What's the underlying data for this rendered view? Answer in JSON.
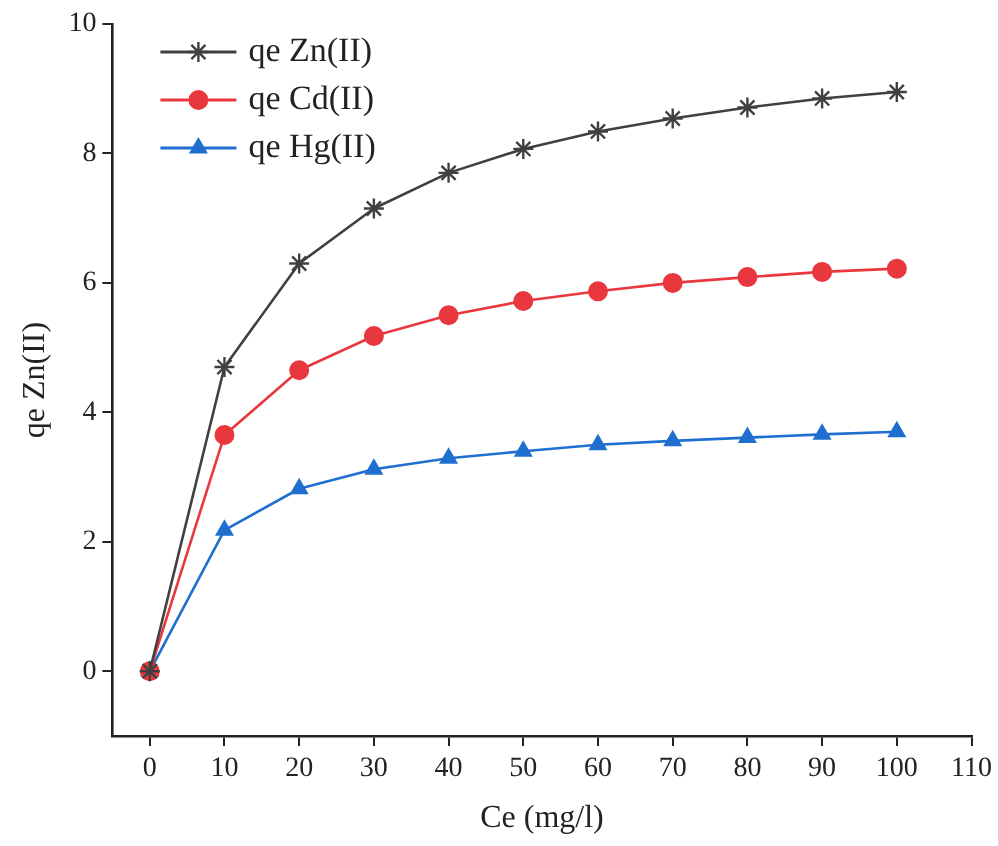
{
  "chart_data": {
    "type": "line",
    "xlabel": "Ce (mg/l)",
    "ylabel": "qe Zn(II)",
    "x": [
      0,
      10,
      20,
      30,
      40,
      50,
      60,
      70,
      80,
      90,
      100
    ],
    "xlim": [
      -5,
      110
    ],
    "xticks": [
      0,
      10,
      20,
      30,
      40,
      50,
      60,
      70,
      80,
      90,
      100,
      110
    ],
    "ylim": [
      -1,
      10
    ],
    "yticks": [
      0,
      2,
      4,
      6,
      8,
      10
    ],
    "grid": false,
    "legend": "top left",
    "line_style": "solid",
    "series": [
      {
        "name": "qe Zn(II)",
        "color": "#404040",
        "marker": "cross",
        "values": [
          0,
          4.7,
          6.3,
          7.15,
          7.7,
          8.07,
          8.34,
          8.54,
          8.71,
          8.85,
          8.95
        ]
      },
      {
        "name": "qe Cd(II)",
        "color": "#e8383d",
        "marker": "circle",
        "values": [
          0,
          3.65,
          4.65,
          5.18,
          5.5,
          5.72,
          5.87,
          6.0,
          6.09,
          6.17,
          6.22
        ]
      },
      {
        "name": "qe Hg(II)",
        "color": "#1f6fd0",
        "marker": "triangle",
        "values": [
          0,
          2.18,
          2.82,
          3.12,
          3.29,
          3.4,
          3.5,
          3.56,
          3.61,
          3.66,
          3.7
        ]
      }
    ]
  }
}
